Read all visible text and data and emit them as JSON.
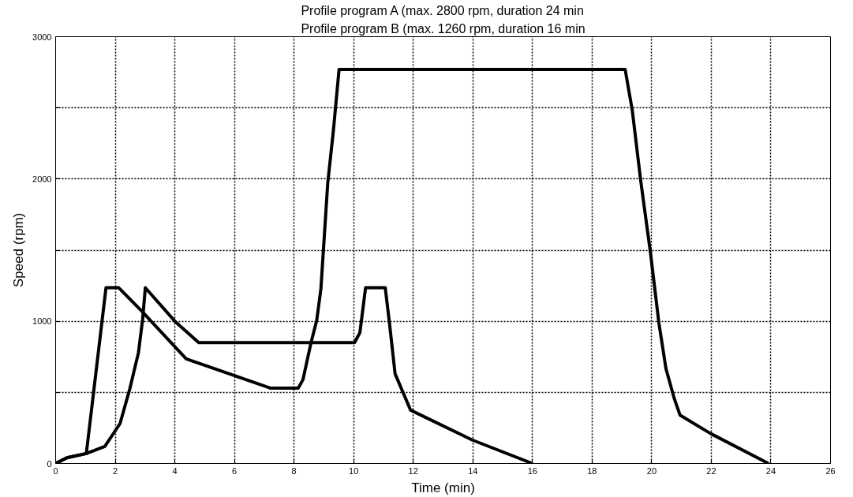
{
  "chart_data": {
    "type": "line",
    "xlabel": "Time (min)",
    "ylabel": "Speed (rpm)",
    "annotations": [
      "Profile program A (max. 2800 rpm, duration 24 min",
      "Profile program B (max. 1260 rpm, duration 16 min"
    ],
    "xlim": [
      0,
      26
    ],
    "xticks": [
      0,
      2,
      4,
      6,
      8,
      10,
      12,
      14,
      16,
      18,
      20,
      22,
      24,
      26
    ],
    "ylim": [
      0,
      3000
    ],
    "yticks": [
      0,
      {
        "value": 500,
        "label": null
      },
      1000,
      {
        "value": 1500,
        "label": null
      },
      2000,
      {
        "value": 2500,
        "label": null
      },
      3000
    ],
    "grid": true,
    "marker": "none",
    "line_style": "solid",
    "series": [
      {
        "color": "#000000",
        "x": [
          0,
          0.38,
          1.03,
          1.69,
          2.12,
          2.87,
          4.38,
          7.2,
          8.14,
          8.3,
          8.57,
          8.76,
          8.9,
          9.13,
          9.32,
          9.51,
          19.11,
          19.35,
          19.63,
          19.96,
          20.24,
          20.48,
          20.76,
          20.95,
          21.98,
          23.92
        ],
        "values": [
          0,
          40,
          70,
          1235,
          1235,
          1075,
          735,
          530,
          530,
          590,
          850,
          1005,
          1225,
          1970,
          2340,
          2770,
          2770,
          2480,
          1990,
          1480,
          990,
          665,
          455,
          340,
          210,
          0
        ]
      },
      {
        "color": "#000000",
        "x": [
          0,
          0.38,
          1.03,
          1.65,
          2.16,
          2.49,
          2.78,
          2.92,
          3.01,
          4.0,
          4.8,
          10.03,
          10.21,
          10.4,
          11.06,
          11.2,
          11.39,
          11.91,
          13.98,
          16.0
        ],
        "values": [
          0,
          40,
          70,
          120,
          280,
          525,
          780,
          1015,
          1235,
          1000,
          850,
          850,
          920,
          1235,
          1235,
          990,
          630,
          375,
          165,
          0
        ]
      }
    ]
  }
}
